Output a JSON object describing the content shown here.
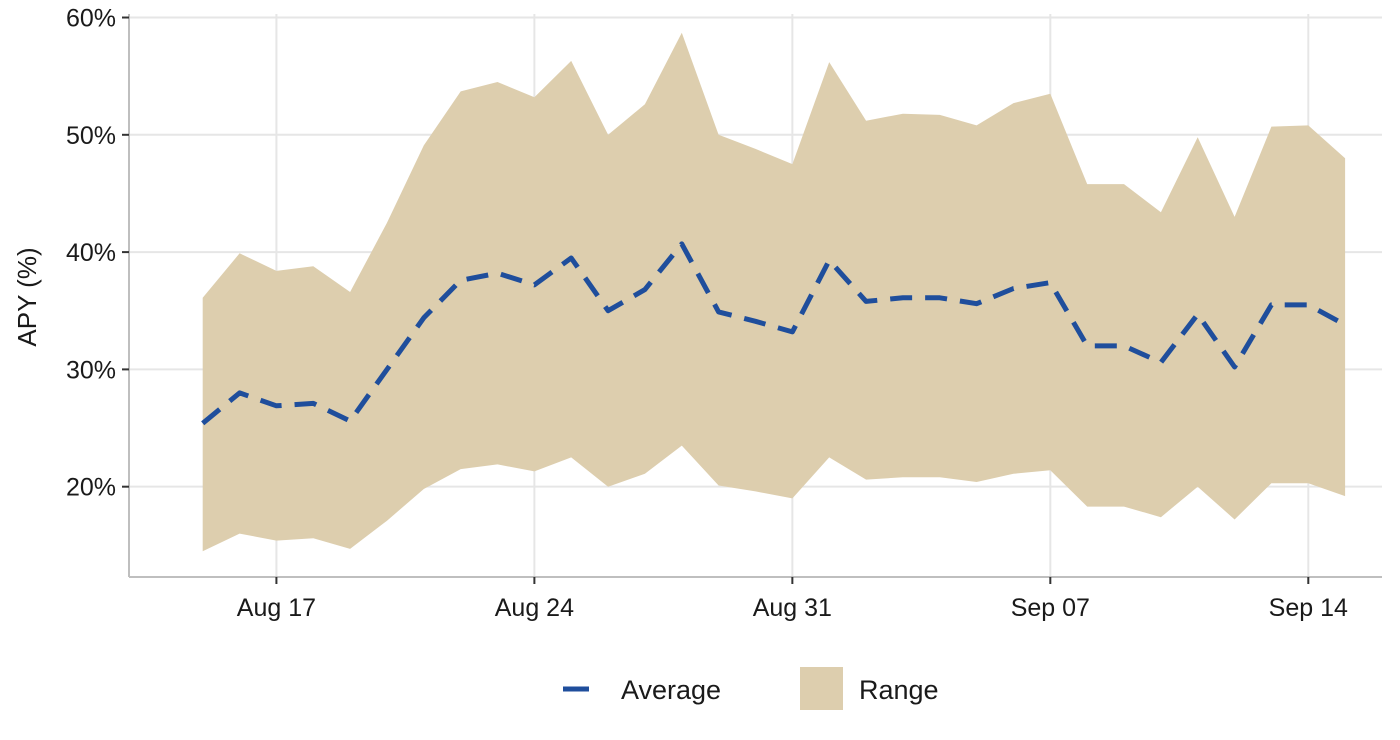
{
  "chart_data": {
    "type": "area",
    "title": "",
    "xlabel": "",
    "ylabel": "APY (%)",
    "x": [
      "2024-08-15",
      "2024-08-16",
      "2024-08-17",
      "2024-08-18",
      "2024-08-19",
      "2024-08-20",
      "2024-08-21",
      "2024-08-22",
      "2024-08-23",
      "2024-08-24",
      "2024-08-25",
      "2024-08-26",
      "2024-08-27",
      "2024-08-28",
      "2024-08-29",
      "2024-08-30",
      "2024-08-31",
      "2024-09-01",
      "2024-09-02",
      "2024-09-03",
      "2024-09-04",
      "2024-09-05",
      "2024-09-06",
      "2024-09-07",
      "2024-09-08",
      "2024-09-09",
      "2024-09-10",
      "2024-09-11",
      "2024-09-12",
      "2024-09-13",
      "2024-09-14",
      "2024-09-15"
    ],
    "x_tick_values": [
      "2024-08-17",
      "2024-08-24",
      "2024-08-31",
      "2024-09-07",
      "2024-09-14"
    ],
    "x_tick_labels": [
      "Aug 17",
      "Aug 24",
      "Aug 31",
      "Sep 07",
      "Sep 14"
    ],
    "y_ticks": [
      20,
      30,
      40,
      50,
      60
    ],
    "y_tick_labels": [
      "20%",
      "30%",
      "40%",
      "50%",
      "60%"
    ],
    "ylim": [
      12.3,
      60.3
    ],
    "xlim": [
      "2024-08-13",
      "2024-09-16"
    ],
    "grid": true,
    "legend_position": "bottom",
    "series": [
      {
        "name": "Average",
        "kind": "line",
        "linestyle": "dashed",
        "color": "#1f4e9c",
        "values": [
          25.4,
          28.0,
          26.9,
          27.1,
          25.6,
          30.0,
          34.4,
          37.6,
          38.2,
          37.2,
          39.5,
          35.0,
          36.8,
          40.7,
          34.9,
          34.1,
          33.2,
          39.3,
          35.8,
          36.1,
          36.1,
          35.6,
          36.9,
          37.4,
          32.0,
          32.0,
          30.6,
          34.7,
          30.2,
          35.5,
          35.5,
          33.8
        ]
      },
      {
        "name": "Range",
        "kind": "ribbon",
        "color": "#ddceae",
        "lower": [
          14.5,
          16.0,
          15.4,
          15.6,
          14.7,
          17.1,
          19.8,
          21.5,
          21.9,
          21.3,
          22.5,
          20.0,
          21.1,
          23.5,
          20.1,
          19.6,
          19.0,
          22.5,
          20.6,
          20.8,
          20.8,
          20.4,
          21.1,
          21.4,
          18.3,
          18.3,
          17.4,
          20.0,
          17.2,
          20.3,
          20.3,
          19.2
        ],
        "upper": [
          36.1,
          39.9,
          38.4,
          38.8,
          36.6,
          42.5,
          49.1,
          53.7,
          54.5,
          53.2,
          56.3,
          50.0,
          52.6,
          58.7,
          50.0,
          48.8,
          47.5,
          56.2,
          51.2,
          51.8,
          51.7,
          50.8,
          52.7,
          53.5,
          45.8,
          45.8,
          43.4,
          49.8,
          43.0,
          50.7,
          50.8,
          48.0
        ]
      }
    ]
  },
  "colors": {
    "average": "#1f4e9c",
    "range": "#ddceae",
    "grid": "#e6e6e6",
    "axis": "#bfbfbf"
  }
}
